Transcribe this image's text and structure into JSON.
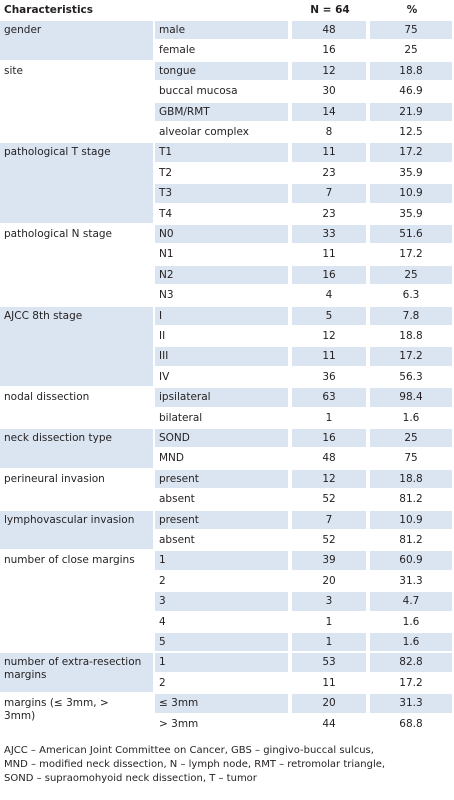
{
  "table": {
    "header": [
      "Characteristics",
      "N = 64",
      "%"
    ],
    "groups": [
      {
        "label": "gender",
        "rows": [
          [
            "male",
            48,
            75
          ],
          [
            "female",
            16,
            25
          ]
        ]
      },
      {
        "label": "site",
        "rows": [
          [
            "tongue",
            12,
            18.8
          ],
          [
            "buccal mucosa",
            30,
            46.9
          ],
          [
            "GBM/RMT",
            14,
            21.9
          ],
          [
            "alveolar complex",
            8,
            12.5
          ]
        ]
      },
      {
        "label": "pathological T stage",
        "rows": [
          [
            "T1",
            11,
            17.2
          ],
          [
            "T2",
            23,
            35.9
          ],
          [
            "T3",
            7,
            10.9
          ],
          [
            "T4",
            23,
            35.9
          ]
        ]
      },
      {
        "label": "pathological N stage",
        "rows": [
          [
            "N0",
            33,
            51.6
          ],
          [
            "N1",
            11,
            17.2
          ],
          [
            "N2",
            16,
            25
          ],
          [
            "N3",
            4,
            6.3
          ]
        ]
      },
      {
        "label": "AJCC 8th stage",
        "rows": [
          [
            "I",
            5,
            7.8
          ],
          [
            "II",
            12,
            18.8
          ],
          [
            "III",
            11,
            17.2
          ],
          [
            "IV",
            36,
            56.3
          ]
        ]
      },
      {
        "label": "nodal dissection",
        "rows": [
          [
            "ipsilateral",
            63,
            98.4
          ],
          [
            "bilateral",
            1,
            1.6
          ]
        ]
      },
      {
        "label": "neck dissection type",
        "rows": [
          [
            "SOND",
            16,
            25
          ],
          [
            "MND",
            48,
            75
          ]
        ]
      },
      {
        "label": "perineural invasion",
        "rows": [
          [
            "present",
            12,
            18.8
          ],
          [
            "absent",
            52,
            81.2
          ]
        ]
      },
      {
        "label": "lymphovascular invasion",
        "rows": [
          [
            "present",
            7,
            10.9
          ],
          [
            "absent",
            52,
            81.2
          ]
        ]
      },
      {
        "label": "number of close margins",
        "rows": [
          [
            "1",
            39,
            60.9
          ],
          [
            "2",
            20,
            31.3
          ],
          [
            "3",
            3,
            4.7
          ],
          [
            "4",
            1,
            1.6
          ],
          [
            "5",
            1,
            1.6
          ]
        ]
      },
      {
        "label": "number of extra-resection margins",
        "rows": [
          [
            "1",
            53,
            82.8
          ],
          [
            "2",
            11,
            17.2
          ]
        ]
      },
      {
        "label": "margins (≤ 3mm, > 3mm)",
        "rows": [
          [
            "≤ 3mm",
            20,
            31.3
          ],
          [
            "> 3mm",
            44,
            68.8
          ]
        ]
      }
    ],
    "footnote": [
      "AJCC – American Joint Committee on Cancer, GBS – gingivo-buccal sulcus,",
      "MND – modified neck dissection, N – lymph node, RMT – retromolar triangle,",
      "SOND – supraomohyoid neck dissection, T – tumor"
    ]
  }
}
